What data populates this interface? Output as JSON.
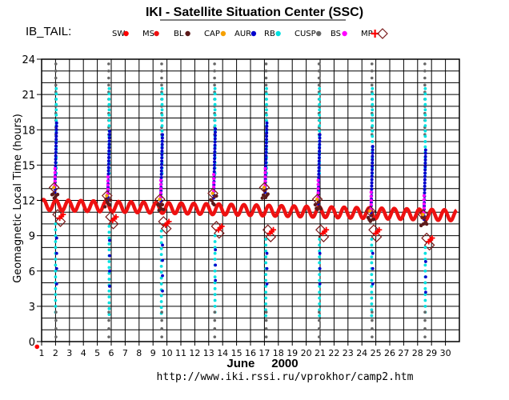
{
  "chart_data": {
    "type": "scatter",
    "title": "IKI - Satellite Situation Center (SSC)",
    "subtitle": "IB_TAIL:",
    "xlabel": "June     2000",
    "ylabel": "Geomagnetic  Local Time  (hours)",
    "url": "http://www.iki.rssi.ru/vprokhor/camp2.htm",
    "xlim": [
      1,
      31
    ],
    "ylim": [
      0,
      24
    ],
    "x_ticks": [
      1,
      2,
      3,
      4,
      5,
      6,
      7,
      8,
      9,
      10,
      11,
      12,
      13,
      14,
      15,
      16,
      17,
      18,
      19,
      20,
      21,
      22,
      23,
      24,
      25,
      26,
      27,
      28,
      29,
      30
    ],
    "y_ticks": [
      0,
      3,
      6,
      9,
      12,
      15,
      18,
      21,
      24
    ],
    "grid": true,
    "legend_position": "top",
    "legend": [
      {
        "label": "SW",
        "color": "#ff0000",
        "marker": "dot"
      },
      {
        "label": "MS",
        "color": "#ee1111",
        "marker": "dot"
      },
      {
        "label": "BL",
        "color": "#5c1a1a",
        "marker": "dot"
      },
      {
        "label": "CAP",
        "color": "#f5a000",
        "marker": "dot"
      },
      {
        "label": "AUR",
        "color": "#0000cc",
        "marker": "dot"
      },
      {
        "label": "RB",
        "color": "#00e0e0",
        "marker": "dot"
      },
      {
        "label": "CUSP",
        "color": "#666666",
        "marker": "dot"
      },
      {
        "label": "BS",
        "color": "#ff00ff",
        "marker": "dot"
      },
      {
        "label": "MP",
        "color": "#ff0000",
        "marker": "cross"
      },
      {
        "label": "",
        "color": "#7a1a1a",
        "marker": "diamond"
      }
    ],
    "orbits": [
      {
        "day": 2.0,
        "mlt_start": 12.5,
        "mlt_end": 10.8
      },
      {
        "day": 5.8,
        "mlt_start": 11.8,
        "mlt_end": 10.6
      },
      {
        "day": 9.6,
        "mlt_start": 11.5,
        "mlt_end": 10.2
      },
      {
        "day": 13.4,
        "mlt_start": 12.0,
        "mlt_end": 9.8
      },
      {
        "day": 17.1,
        "mlt_start": 12.5,
        "mlt_end": 9.5
      },
      {
        "day": 20.9,
        "mlt_start": 11.5,
        "mlt_end": 9.5
      },
      {
        "day": 24.7,
        "mlt_start": 10.5,
        "mlt_end": 9.5
      },
      {
        "day": 28.5,
        "mlt_start": 10.2,
        "mlt_end": 8.8
      }
    ],
    "magnetosheath_wave": {
      "mean": 11.2,
      "amplitude": 0.45,
      "period_days": 0.9,
      "trend_per_day": -0.03
    },
    "sw_points": [
      {
        "x": 0.9,
        "y": -0.3
      }
    ]
  }
}
